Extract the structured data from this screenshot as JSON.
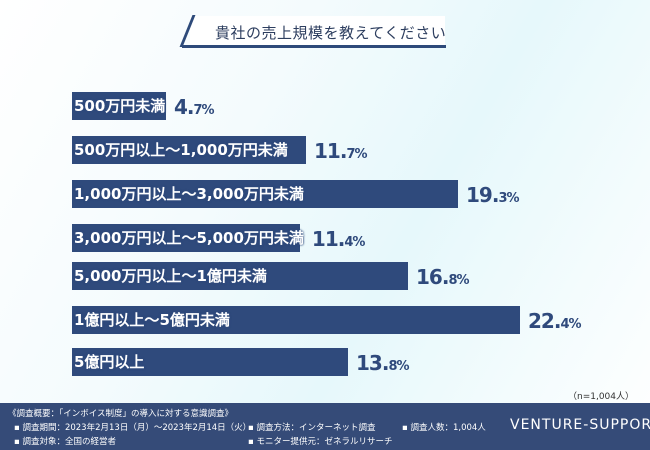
{
  "chart_data": {
    "type": "bar",
    "orientation": "horizontal",
    "title": "貴社の売上規模を教えてください",
    "categories": [
      "500万円未満",
      "500万円以上～1,000万円未満",
      "1,000万円以上～3,000万円未満",
      "3,000万円以上～5,000万円未満",
      "5,000万円以上～1億円未満",
      "1億円以上～5億円未満",
      "5億円以上"
    ],
    "values": [
      4.7,
      11.7,
      19.3,
      11.4,
      16.8,
      22.4,
      13.8
    ],
    "value_labels": [
      "4.7",
      "11.7",
      "19.3",
      "11.4",
      "16.8",
      "22.4",
      "13.8"
    ],
    "unit": "%",
    "sample": "（n=1,004人）",
    "bar_color": "#2f4a7c"
  },
  "footer": {
    "overview": "《調査概要：「インボイス制度」の導入に対する意識調査》",
    "period": "▪ 調査期間：2023年2月13日（月）～2023年2月14日（火）",
    "target": "▪ 調査対象：全国の経営者",
    "method": "▪ 調査方法：インターネット調査",
    "provider": "▪ モニター提供元：ゼネラルリサーチ",
    "count": "▪ 調査人数：1,004人",
    "brand": "VENTURE-SUPPORT"
  }
}
